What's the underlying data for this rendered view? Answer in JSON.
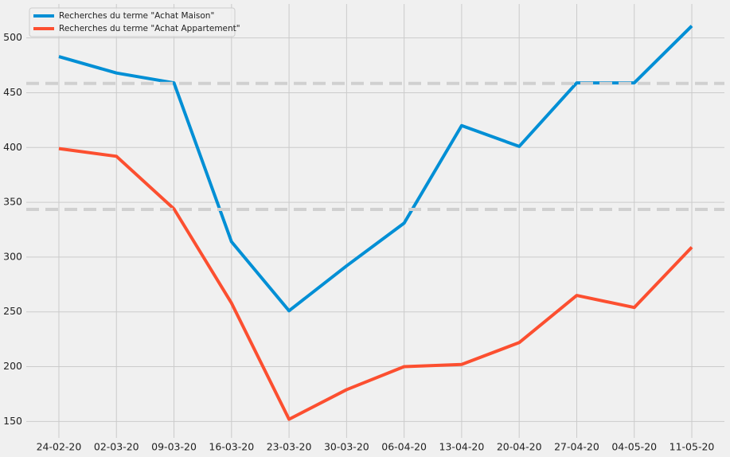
{
  "chart_data": {
    "type": "line",
    "categories": [
      "24-02-20",
      "02-03-20",
      "09-03-20",
      "16-03-20",
      "23-03-20",
      "30-03-20",
      "06-04-20",
      "13-04-20",
      "20-04-20",
      "27-04-20",
      "04-05-20",
      "11-05-20"
    ],
    "series": [
      {
        "name": "Recherches du terme \"Achat Maison\"",
        "color": "#008fd5",
        "values": [
          483,
          468,
          459,
          314,
          251,
          292,
          331,
          420,
          401,
          459,
          459,
          511
        ]
      },
      {
        "name": "Recherches du terme \"Achat Appartement\"",
        "color": "#fc4f30",
        "values": [
          399,
          392,
          344,
          258,
          152,
          179,
          200,
          202,
          222,
          265,
          254,
          309
        ]
      }
    ],
    "hlines": [
      458.5,
      343.5
    ],
    "hline_color": "#d0d0d0",
    "ylim": [
      135,
      531
    ],
    "yticks": [
      150,
      200,
      250,
      300,
      350,
      400,
      450,
      500
    ],
    "grid": true,
    "legend": "upper-left"
  }
}
